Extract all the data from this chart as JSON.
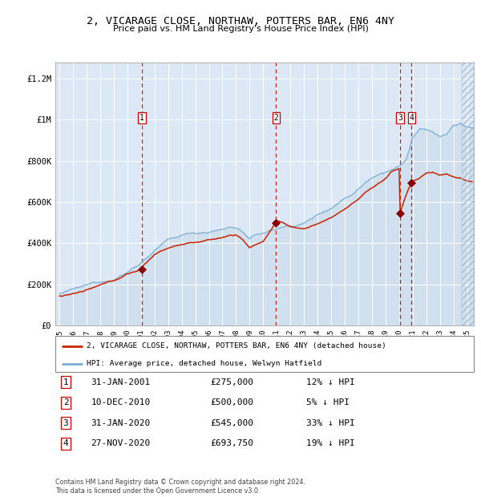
{
  "title": "2, VICARAGE CLOSE, NORTHAW, POTTERS BAR, EN6 4NY",
  "subtitle": "Price paid vs. HM Land Registry's House Price Index (HPI)",
  "background_color": "#ffffff",
  "plot_bg_color": "#dce8f5",
  "grid_color": "#c8d8e8",
  "hpi_color": "#7ab0d4",
  "price_color": "#cc2200",
  "sale_marker_color": "#880000",
  "dashed_line_color": "#cc0000",
  "transactions": [
    {
      "label": "1",
      "date_x": 2001.08,
      "price": 275000,
      "date_str": "31-JAN-2001",
      "price_str": "£275,000",
      "pct_str": "12% ↓ HPI"
    },
    {
      "label": "2",
      "date_x": 2010.94,
      "price": 500000,
      "date_str": "10-DEC-2010",
      "price_str": "£500,000",
      "pct_str": "5% ↓ HPI"
    },
    {
      "label": "3",
      "date_x": 2020.08,
      "price": 545000,
      "date_str": "31-JAN-2020",
      "price_str": "£545,000",
      "pct_str": "33% ↓ HPI"
    },
    {
      "label": "4",
      "date_x": 2020.92,
      "price": 693750,
      "date_str": "27-NOV-2020",
      "price_str": "£693,750",
      "pct_str": "19% ↓ HPI"
    }
  ],
  "ylim": [
    0,
    1280000
  ],
  "xlim": [
    1994.7,
    2025.5
  ],
  "yticks": [
    0,
    200000,
    400000,
    600000,
    800000,
    1000000,
    1200000
  ],
  "ytick_labels": [
    "£0",
    "£200K",
    "£400K",
    "£600K",
    "£800K",
    "£1M",
    "£1.2M"
  ],
  "xticks": [
    1995,
    1996,
    1997,
    1998,
    1999,
    2000,
    2001,
    2002,
    2003,
    2004,
    2005,
    2006,
    2007,
    2008,
    2009,
    2010,
    2011,
    2012,
    2013,
    2014,
    2015,
    2016,
    2017,
    2018,
    2019,
    2020,
    2021,
    2022,
    2023,
    2024,
    2025
  ],
  "legend_price_label": "2, VICARAGE CLOSE, NORTHAW, POTTERS BAR, EN6 4NY (detached house)",
  "legend_hpi_label": "HPI: Average price, detached house, Welwyn Hatfield",
  "footer": "Contains HM Land Registry data © Crown copyright and database right 2024.\nThis data is licensed under the Open Government Licence v3.0."
}
